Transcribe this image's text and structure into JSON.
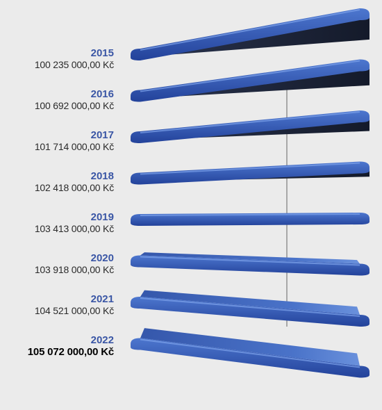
{
  "colors": {
    "year_text": "#3a56a5",
    "slab_top": "#4169bd",
    "slab_top_light": "#5d86d6",
    "slab_under": "#1e2538",
    "slab_front": "#2f55b3",
    "pole": "#a7a7a7",
    "background": "#ebebeb"
  },
  "chart_data": {
    "type": "bar",
    "categories": [
      "2015",
      "2016",
      "2017",
      "2018",
      "2019",
      "2020",
      "2021",
      "2022"
    ],
    "values": [
      100235000,
      100692000,
      101714000,
      102418000,
      103413000,
      103918000,
      104521000,
      105072000
    ],
    "value_labels": [
      "100 235 000,00 Kč",
      "100 692 000,00 Kč",
      "101 714 000,00 Kč",
      "102 418 000,00 Kč",
      "103 413 000,00 Kč",
      "103 918 000,00 Kč",
      "104 521 000,00 Kč",
      "105 072 000,00 Kč"
    ],
    "highlight_index": 7
  }
}
